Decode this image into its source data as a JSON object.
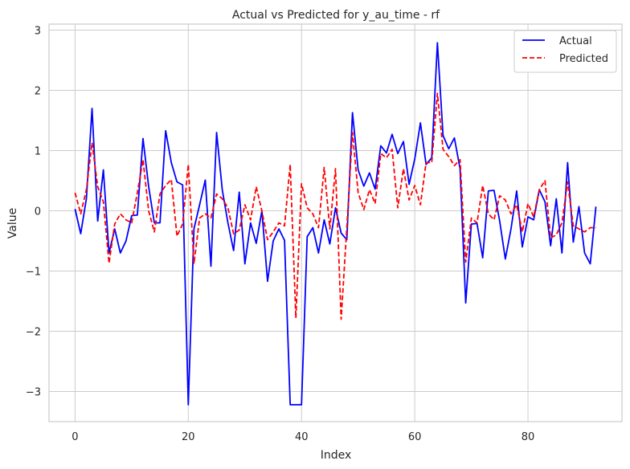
{
  "chart_data": {
    "type": "line",
    "title": "Actual vs Predicted for y_au_time - rf",
    "xlabel": "Index",
    "ylabel": "Value",
    "xlim": [
      -4.6,
      96.6
    ],
    "ylim": [
      -3.5,
      3.1
    ],
    "xticks": [
      0,
      20,
      40,
      60,
      80
    ],
    "yticks": [
      -3,
      -2,
      -1,
      0,
      1,
      2,
      3
    ],
    "xtick_labels": [
      "0",
      "20",
      "40",
      "60",
      "80"
    ],
    "ytick_labels": [
      "−3",
      "−2",
      "−1",
      "0",
      "1",
      "2",
      "3"
    ],
    "grid": true,
    "legend_position": "top-right",
    "series": [
      {
        "name": "Actual",
        "color": "#0000ff",
        "style": "solid",
        "values": [
          0.03,
          -0.38,
          0.2,
          1.7,
          -0.17,
          0.68,
          -0.7,
          -0.3,
          -0.7,
          -0.5,
          -0.08,
          -0.07,
          1.2,
          0.4,
          -0.2,
          -0.2,
          1.33,
          0.8,
          0.48,
          0.43,
          -3.22,
          -0.3,
          0.1,
          0.51,
          -0.92,
          1.3,
          0.35,
          -0.2,
          -0.66,
          0.31,
          -0.88,
          -0.2,
          -0.54,
          0.0,
          -1.17,
          -0.5,
          -0.3,
          -0.49,
          -3.22,
          -3.22,
          -3.22,
          -0.43,
          -0.28,
          -0.7,
          -0.15,
          -0.55,
          0.05,
          -0.37,
          -0.48,
          1.63,
          0.68,
          0.41,
          0.63,
          0.36,
          1.08,
          0.96,
          1.27,
          0.95,
          1.15,
          0.44,
          0.86,
          1.46,
          0.77,
          0.88,
          2.79,
          1.25,
          1.03,
          1.21,
          0.7,
          -1.53,
          -0.22,
          -0.21,
          -0.78,
          0.33,
          0.34,
          -0.17,
          -0.8,
          -0.3,
          0.33,
          -0.6,
          -0.1,
          -0.15,
          0.35,
          0.15,
          -0.58,
          0.2,
          -0.7,
          0.8,
          -0.52,
          0.07,
          -0.7,
          -0.88,
          0.07
        ]
      },
      {
        "name": "Predicted",
        "color": "#ff0000",
        "style": "dashed",
        "values": [
          0.3,
          -0.05,
          0.35,
          1.13,
          0.4,
          0.15,
          -0.87,
          -0.22,
          -0.05,
          -0.15,
          -0.2,
          0.3,
          0.85,
          0.0,
          -0.35,
          0.28,
          0.42,
          0.52,
          -0.42,
          -0.22,
          0.77,
          -0.88,
          -0.12,
          -0.05,
          -0.12,
          0.28,
          0.2,
          0.05,
          -0.38,
          -0.32,
          0.1,
          -0.15,
          0.4,
          0.0,
          -0.48,
          -0.35,
          -0.2,
          -0.25,
          0.77,
          -1.78,
          0.45,
          0.05,
          -0.05,
          -0.28,
          0.72,
          -0.3,
          0.7,
          -1.8,
          -0.28,
          1.3,
          0.3,
          0.02,
          0.35,
          0.12,
          0.95,
          0.88,
          1.02,
          0.05,
          0.7,
          0.18,
          0.42,
          0.1,
          0.8,
          0.8,
          1.95,
          1.02,
          0.9,
          0.75,
          0.85,
          -0.85,
          -0.12,
          -0.2,
          0.42,
          -0.05,
          -0.15,
          0.25,
          0.18,
          -0.05,
          0.1,
          -0.35,
          0.12,
          -0.1,
          0.35,
          0.5,
          -0.45,
          -0.4,
          -0.2,
          0.48,
          -0.25,
          -0.3,
          -0.35,
          -0.28,
          -0.28
        ]
      }
    ]
  }
}
